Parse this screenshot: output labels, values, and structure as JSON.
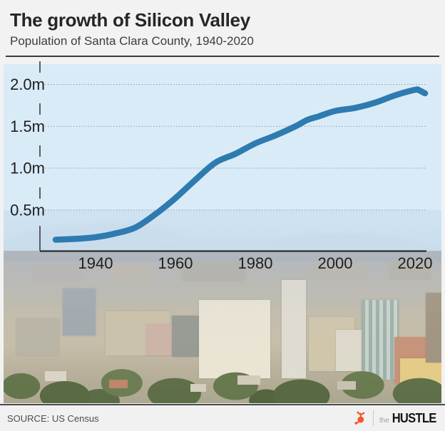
{
  "header": {
    "title": "The growth of Silicon Valley",
    "subtitle": "Population of Santa Clara County, 1940-2020"
  },
  "chart_data": {
    "type": "line",
    "title": "The growth of Silicon Valley",
    "subtitle": "Population of Santa Clara County, 1940-2020",
    "series": [
      {
        "name": "Santa Clara County population (millions)",
        "x": [
          1930,
          1935,
          1940,
          1945,
          1950,
          1955,
          1960,
          1965,
          1970,
          1975,
          1980,
          1985,
          1990,
          1993,
          1996,
          2000,
          2005,
          2010,
          2015,
          2020,
          2021,
          2022.5
        ],
        "y": [
          0.145,
          0.155,
          0.175,
          0.22,
          0.291,
          0.45,
          0.642,
          0.86,
          1.065,
          1.17,
          1.295,
          1.39,
          1.498,
          1.575,
          1.62,
          1.683,
          1.72,
          1.782,
          1.87,
          1.936,
          1.93,
          1.894
        ]
      }
    ],
    "unit": "millions of people",
    "x_ticks": [
      1940,
      1960,
      1980,
      2000,
      2020
    ],
    "y_ticks": [
      {
        "value": 0.5,
        "label": "0.5m"
      },
      {
        "value": 1.0,
        "label": "1.0m"
      },
      {
        "value": 1.5,
        "label": "1.5m"
      },
      {
        "value": 2.0,
        "label": "2.0m"
      }
    ],
    "xlim": [
      1929,
      2023.5
    ],
    "ylim": [
      0,
      2.25
    ],
    "grid": "horizontal",
    "legend": "none",
    "line_color": "#2e7bb0"
  },
  "footer": {
    "source": "SOURCE: US Census",
    "brand": {
      "prefix": "the",
      "name": "HUSTLE"
    }
  },
  "colors": {
    "accent_orange": "#f3572b",
    "panel_blue": "#d1e8f9",
    "line_blue": "#2e7bb0"
  }
}
